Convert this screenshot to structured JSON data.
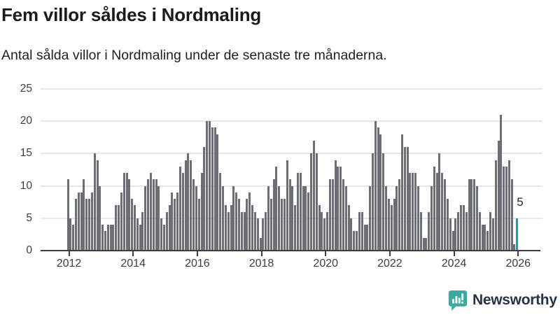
{
  "header": {
    "title": "Fem villor såldes i Nordmaling",
    "subtitle": "Antal sålda villor i Nordmaling under de senaste tre månaderna."
  },
  "chart_data": {
    "type": "bar",
    "title": "Fem villor såldes i Nordmaling",
    "xlabel": "",
    "ylabel": "",
    "start_month": "2012-01",
    "end_month": "2026-01",
    "y_ticks": [
      0,
      5,
      10,
      15,
      20,
      25
    ],
    "ylim": [
      0,
      25
    ],
    "x_tick_labels": [
      "2012",
      "2014",
      "2016",
      "2018",
      "2020",
      "2022",
      "2024",
      "2026"
    ],
    "grid": true,
    "bar_color": "#6b6e74",
    "values": [
      11,
      5,
      4,
      8,
      9,
      9,
      11,
      8,
      8,
      9,
      15,
      14,
      10,
      4,
      3,
      4,
      4,
      4,
      7,
      7,
      9,
      12,
      12,
      11,
      8,
      7,
      5,
      4,
      6,
      10,
      11,
      12,
      11,
      11,
      10,
      5,
      4,
      6,
      7,
      9,
      8,
      9,
      13,
      12,
      14,
      15,
      14,
      11,
      10,
      8,
      12,
      16,
      20,
      20,
      19,
      19,
      18,
      12,
      10,
      7,
      6,
      7,
      10,
      9,
      8,
      6,
      6,
      8,
      9,
      7,
      6,
      5,
      2,
      5,
      6,
      10,
      8,
      11,
      13,
      10,
      8,
      8,
      14,
      11,
      10,
      7,
      12,
      12,
      10,
      10,
      9,
      15,
      17,
      15,
      7,
      6,
      5,
      6,
      11,
      11,
      14,
      13,
      13,
      11,
      10,
      7,
      5,
      3,
      3,
      6,
      6,
      4,
      4,
      10,
      15,
      20,
      19,
      18,
      15,
      10,
      8,
      7,
      8,
      10,
      11,
      18,
      16,
      16,
      12,
      12,
      12,
      10,
      6,
      2,
      2,
      6,
      10,
      13,
      12,
      15,
      12,
      11,
      8,
      5,
      3,
      5,
      6,
      7,
      7,
      6,
      11,
      11,
      11,
      10,
      6,
      4,
      4,
      3,
      6,
      5,
      14,
      17,
      21,
      13,
      13,
      14,
      11,
      1,
      5
    ],
    "highlight": {
      "index": 168,
      "value": 5,
      "label": "5",
      "color": "#0ba69e"
    }
  },
  "footer": {
    "brand": "Newsworthy",
    "logo_color": "#3ba99e"
  }
}
